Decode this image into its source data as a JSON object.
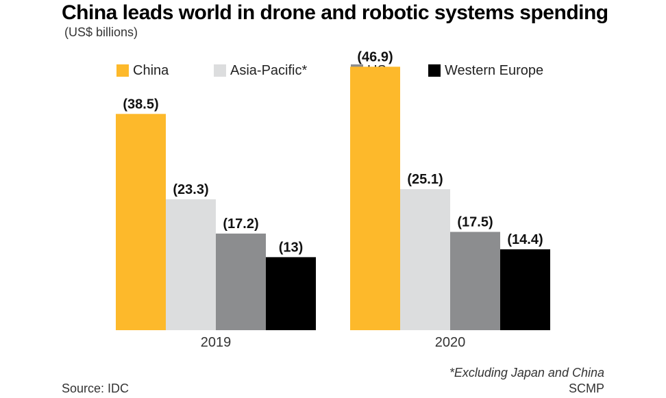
{
  "title": "China leads world in drone and robotic systems spending",
  "subtitle": "(US$ billions)",
  "footnote": "*Excluding Japan and China",
  "source": "Source: IDC",
  "credit": "SCMP",
  "legend": [
    {
      "label": "China",
      "color": "#FDB92B"
    },
    {
      "label": "Asia-Pacific*",
      "color": "#DCDDDE"
    },
    {
      "label": "US",
      "color": "#8C8D8F"
    },
    {
      "label": "Western Europe",
      "color": "#000000"
    }
  ],
  "chart_data": {
    "type": "bar",
    "categories": [
      "2019",
      "2020"
    ],
    "series": [
      {
        "name": "China",
        "values": [
          38.5,
          46.9
        ],
        "labels": [
          "(38.5)",
          "(46.9)"
        ],
        "color": "#FDB92B"
      },
      {
        "name": "Asia-Pacific*",
        "values": [
          23.3,
          25.1
        ],
        "labels": [
          "(23.3)",
          "(25.1)"
        ],
        "color": "#DCDDDE"
      },
      {
        "name": "US",
        "values": [
          17.2,
          17.5
        ],
        "labels": [
          "(17.2)",
          "(17.5)"
        ],
        "color": "#8C8D8F"
      },
      {
        "name": "Western Europe",
        "values": [
          13,
          14.4
        ],
        "labels": [
          "(13)",
          "(14.4)"
        ],
        "color": "#000000"
      }
    ],
    "ylim": [
      0,
      50
    ],
    "grid": false,
    "legend_position": "top"
  }
}
